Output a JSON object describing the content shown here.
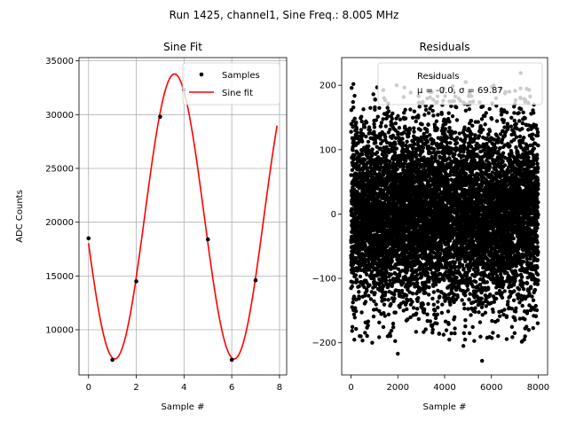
{
  "figure": {
    "suptitle": "Run 1425, channel1, Sine Freq.: 8.005 MHz"
  },
  "chart_data": [
    {
      "type": "scatter+line",
      "title": "Sine Fit",
      "xlabel": "Sample #",
      "ylabel": "ADC Counts",
      "xlim": [
        -0.4,
        8.3
      ],
      "ylim": [
        5800,
        35300
      ],
      "xticks": [
        0,
        2,
        4,
        6,
        8
      ],
      "yticks": [
        10000,
        15000,
        20000,
        25000,
        30000,
        35000
      ],
      "grid": true,
      "legend_position": "top-right",
      "series": [
        {
          "name": "Samples",
          "kind": "points",
          "color": "#000000",
          "x": [
            0,
            1,
            2,
            3,
            4,
            5,
            6,
            7
          ],
          "y": [
            18500,
            7200,
            14500,
            29800,
            32300,
            18400,
            7200,
            14600
          ]
        },
        {
          "name": "Sine fit",
          "kind": "line",
          "color": "#ff0000",
          "model": {
            "offset": 20533,
            "amplitude": 13250,
            "period": 5,
            "peak_x": 3.6
          },
          "x_range": [
            0,
            7.9
          ]
        }
      ]
    },
    {
      "type": "scatter",
      "title": "Residuals",
      "xlabel": "Sample #",
      "xlim": [
        -400,
        8400
      ],
      "ylim": [
        -250,
        243
      ],
      "xticks": [
        0,
        2000,
        4000,
        6000,
        8000
      ],
      "yticks": [
        -200,
        -100,
        0,
        100,
        200
      ],
      "grid": false,
      "legend_position": "top-right",
      "legend_lines": [
        "Residuals",
        "μ = -0.0, σ = 69.87"
      ],
      "series": [
        {
          "name": "Residuals",
          "color": "#000000",
          "n_points": 8000,
          "mean": -0.0,
          "std": 69.87
        }
      ],
      "extremes": [
        {
          "x": 2000,
          "y": -217
        },
        {
          "x": 5600,
          "y": -228
        },
        {
          "x": 3500,
          "y": 212
        },
        {
          "x": 7250,
          "y": 219
        },
        {
          "x": 1950,
          "y": 200
        },
        {
          "x": 100,
          "y": 202
        },
        {
          "x": 4800,
          "y": -205
        },
        {
          "x": 4900,
          "y": 205
        }
      ]
    }
  ]
}
